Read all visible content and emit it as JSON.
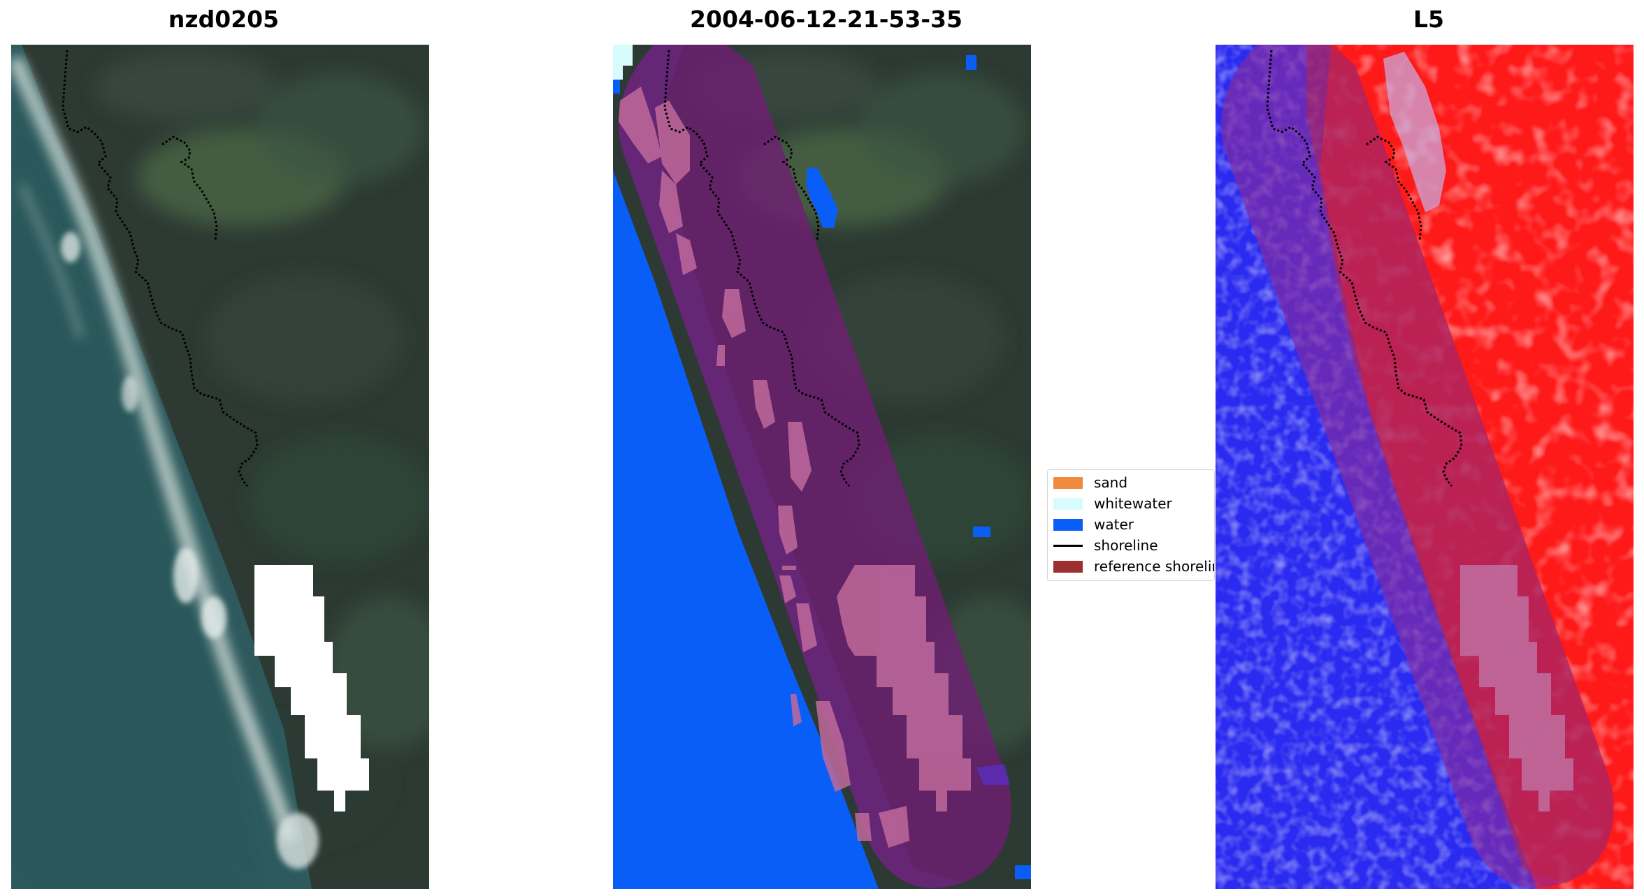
{
  "panels": [
    {
      "title": "nzd0205"
    },
    {
      "title": "2004-06-12-21-53-35"
    },
    {
      "title": "L5"
    }
  ],
  "legend": {
    "items": [
      {
        "label": "sand",
        "color": "#f08a3c",
        "kind": "patch"
      },
      {
        "label": "whitewater",
        "color": "#d8fbfb",
        "kind": "patch"
      },
      {
        "label": "water",
        "color": "#0a5ef8",
        "kind": "patch"
      },
      {
        "label": "shoreline",
        "color": "#000000",
        "kind": "line"
      },
      {
        "label": "reference shoreline buffer",
        "color": "#9c2f2f",
        "kind": "patch"
      }
    ]
  },
  "colors": {
    "sea": "#2e5a5e",
    "land": "#2c3a33",
    "surf": "#c9d6d2",
    "cloud_mask": "#ffffff",
    "water_class": "#0a5ef8",
    "buffer": "#9c2f2f",
    "index_positive": "#ff1a1a",
    "index_negative": "#2a2af0"
  }
}
